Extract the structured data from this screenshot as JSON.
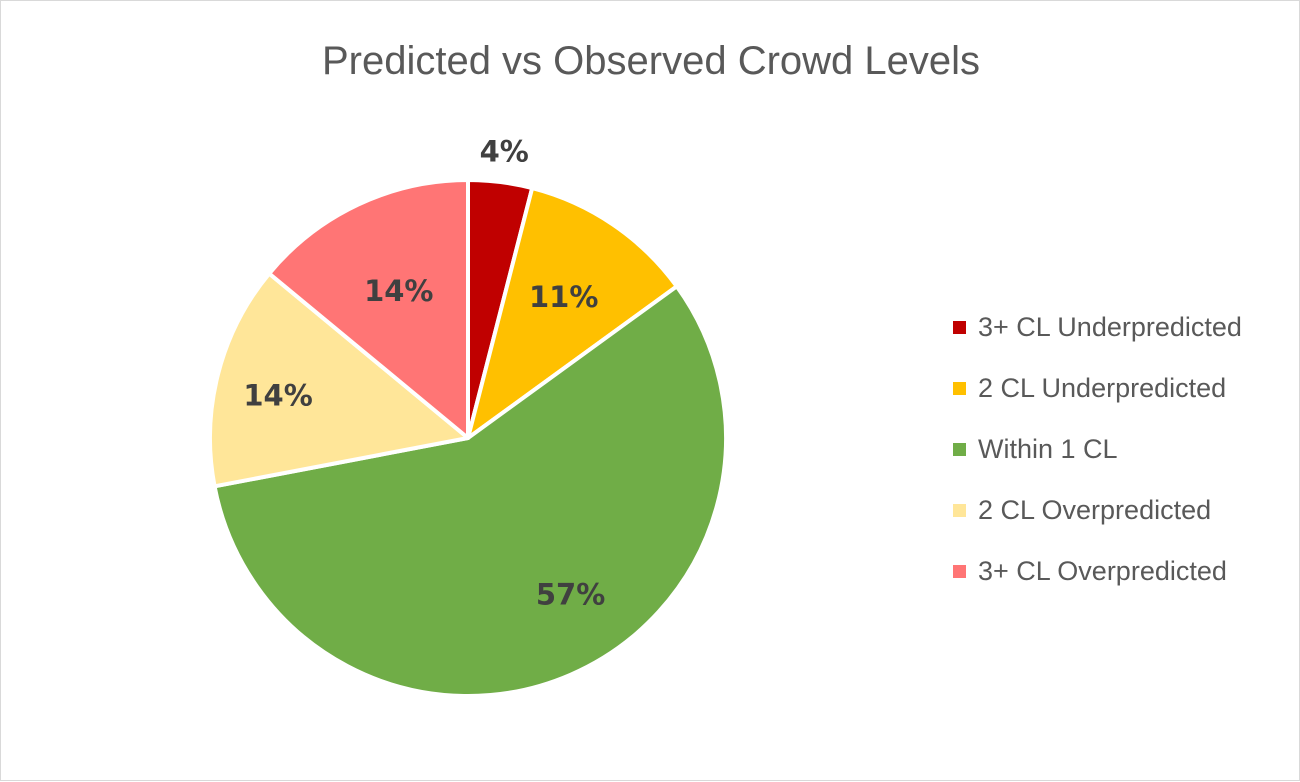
{
  "chart_data": {
    "type": "pie",
    "title": "Predicted vs Observed Crowd Levels",
    "categories": [
      "3+ CL Underpredicted",
      "2 CL Underpredicted",
      "Within 1 CL",
      "2 CL Overpredicted",
      "3+ CL Overpredicted"
    ],
    "values": [
      4,
      11,
      57,
      14,
      14
    ],
    "data_labels": [
      "4%",
      "11%",
      "57%",
      "14%",
      "14%"
    ],
    "colors": [
      "#c00000",
      "#ffc000",
      "#70ad47",
      "#ffe699",
      "#ff7575"
    ],
    "legend_position": "right"
  }
}
